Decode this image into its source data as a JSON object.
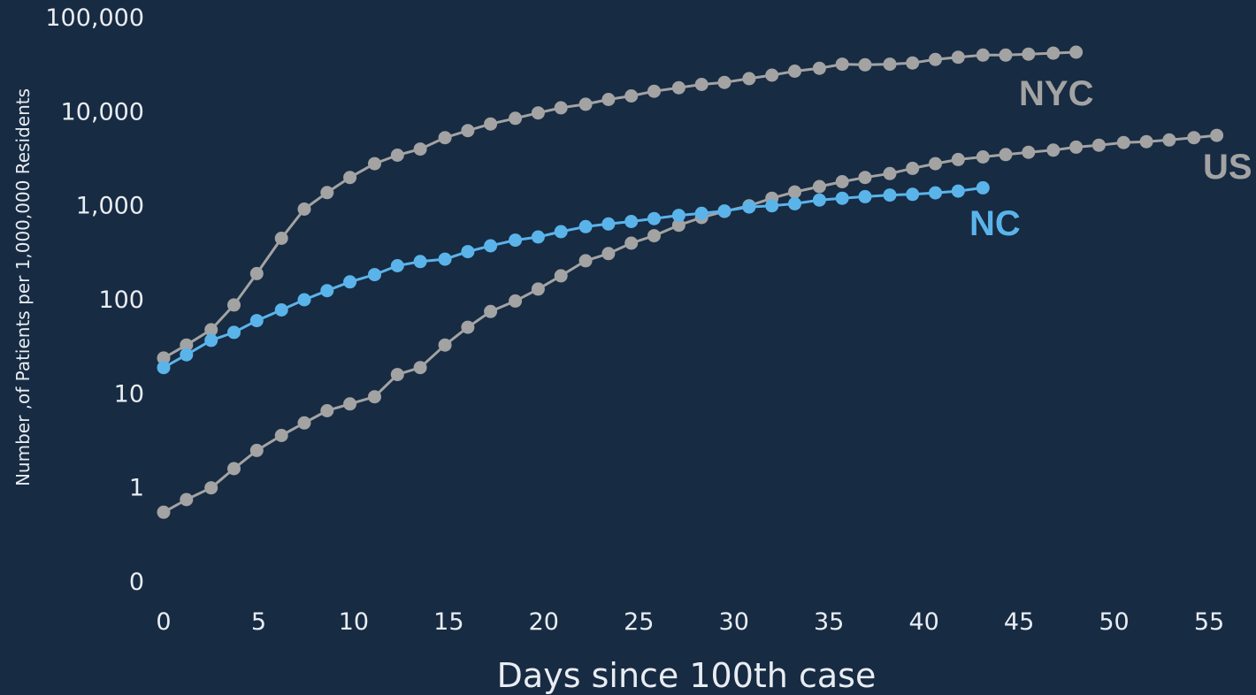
{
  "chart_data": {
    "type": "line",
    "title": "",
    "xlabel": "Days since 100th case",
    "ylabel": "Number ,of Patients per 1,000,000 Residents",
    "x_scale": "linear",
    "y_scale": "log",
    "xlim": [
      0,
      56
    ],
    "ylim": [
      0.1,
      100000
    ],
    "x_ticks": [
      0,
      5,
      10,
      15,
      20,
      25,
      30,
      35,
      40,
      45,
      50,
      55
    ],
    "x_tick_labels": [
      "0",
      "5",
      "10",
      "15",
      "20",
      "25",
      "30",
      "35",
      "40",
      "45",
      "50",
      "55"
    ],
    "y_ticks": [
      0.1,
      1,
      10,
      100,
      1000,
      10000,
      100000
    ],
    "y_tick_labels": [
      "0",
      "1",
      "10",
      "100",
      "1,000",
      "10,000",
      "100,000"
    ],
    "grid": false,
    "legend": "none (series labelled directly at line ends)",
    "colors": {
      "background": "#172b43",
      "text": "#e9edf2",
      "gray_series": "#a3a3a3",
      "nc_series": "#5ab4ea"
    },
    "series": [
      {
        "name": "NYC",
        "color": "#a3a3a3",
        "x": [
          0,
          1.2,
          2.5,
          3.7,
          4.9,
          6.2,
          7.4,
          8.6,
          9.8,
          11.1,
          12.3,
          13.5,
          14.8,
          16.0,
          17.2,
          18.5,
          19.7,
          20.9,
          22.2,
          23.4,
          24.6,
          25.8,
          27.1,
          28.3,
          29.5,
          30.8,
          32.0,
          33.2,
          34.5,
          35.7,
          36.9,
          38.2,
          39.4,
          40.6,
          41.8,
          43.1,
          44.3,
          45.5,
          46.8,
          48.0
        ],
        "y": [
          24,
          33,
          48,
          88,
          190,
          450,
          920,
          1380,
          2000,
          2800,
          3450,
          4000,
          5300,
          6300,
          7400,
          8500,
          9700,
          11000,
          12000,
          13500,
          14700,
          16500,
          18000,
          19500,
          20500,
          22500,
          24500,
          27000,
          29000,
          32000,
          31500,
          32000,
          33000,
          36000,
          38000,
          40000,
          40000,
          41000,
          42000,
          43000
        ]
      },
      {
        "name": "US",
        "color": "#a3a3a3",
        "x": [
          0,
          1.2,
          2.5,
          3.7,
          4.9,
          6.2,
          7.4,
          8.6,
          9.8,
          11.1,
          12.3,
          13.5,
          14.8,
          16.0,
          17.2,
          18.5,
          19.7,
          20.9,
          22.2,
          23.4,
          24.6,
          25.8,
          27.1,
          28.3,
          29.5,
          30.8,
          32.0,
          33.2,
          34.5,
          35.7,
          36.9,
          38.2,
          39.4,
          40.6,
          41.8,
          43.1,
          44.3,
          45.5,
          46.8,
          48.0,
          49.2,
          50.5,
          51.7,
          52.9,
          54.2,
          55.4
        ],
        "y": [
          0.55,
          0.75,
          1.0,
          1.6,
          2.5,
          3.6,
          4.9,
          6.6,
          7.8,
          9.3,
          16,
          19,
          33,
          51,
          75,
          97,
          130,
          180,
          260,
          310,
          400,
          480,
          620,
          750,
          870,
          1000,
          1200,
          1400,
          1600,
          1800,
          2000,
          2200,
          2500,
          2800,
          3100,
          3300,
          3500,
          3700,
          3900,
          4200,
          4400,
          4700,
          4800,
          5000,
          5300,
          5600
        ]
      },
      {
        "name": "NC",
        "color": "#5ab4ea",
        "x": [
          0,
          1.2,
          2.5,
          3.7,
          4.9,
          6.2,
          7.4,
          8.6,
          9.8,
          11.1,
          12.3,
          13.5,
          14.8,
          16.0,
          17.2,
          18.5,
          19.7,
          20.9,
          22.2,
          23.4,
          24.6,
          25.8,
          27.1,
          28.3,
          29.5,
          30.8,
          32.0,
          33.2,
          34.5,
          35.7,
          36.9,
          38.2,
          39.4,
          40.6,
          41.8,
          43.1
        ],
        "y": [
          19,
          26,
          37,
          45,
          60,
          78,
          100,
          125,
          155,
          185,
          230,
          255,
          270,
          325,
          375,
          430,
          465,
          530,
          600,
          640,
          680,
          730,
          790,
          830,
          880,
          970,
          1000,
          1050,
          1150,
          1200,
          1250,
          1300,
          1320,
          1370,
          1430,
          1550
        ]
      }
    ]
  }
}
